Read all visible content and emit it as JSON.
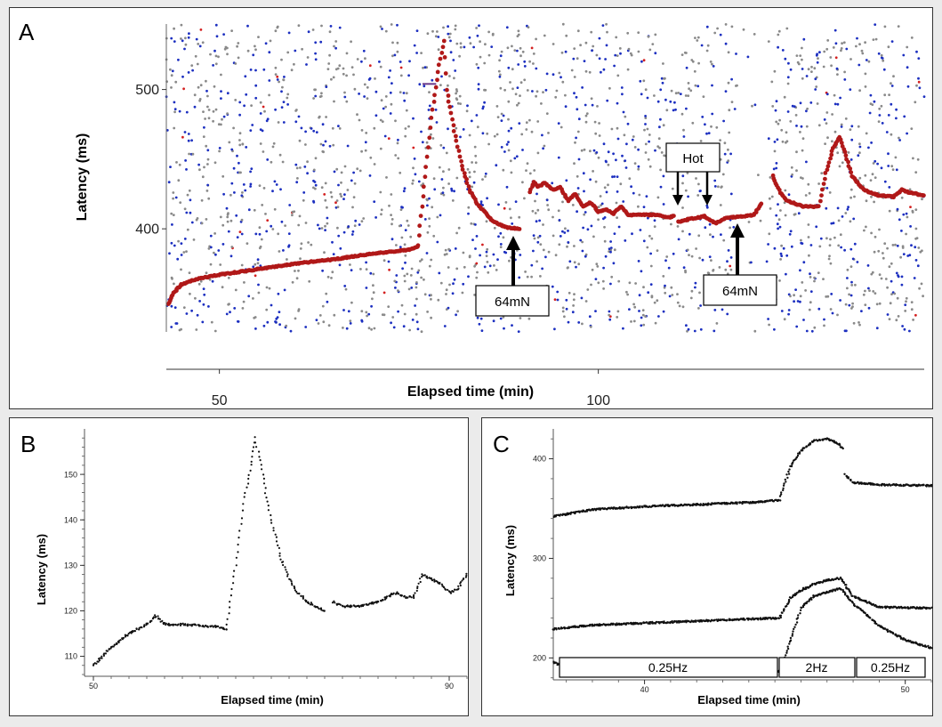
{
  "chart_data": [
    {
      "panel_letter": "A",
      "type": "scatter",
      "xlabel": "Elapsed time (min)",
      "ylabel": "Latency (ms)",
      "xticks": [
        50,
        100
      ],
      "yticks": [
        400,
        500
      ],
      "xlim": [
        43,
        143
      ],
      "ylim": [
        326,
        547
      ],
      "colors": {
        "trace": "#b01818",
        "blue": "#1c2fc0",
        "grey": "#8a8a8a",
        "red": "#d42020"
      },
      "series": [
        {
          "segments": [
            [
              [
                43.2,
                346
              ],
              [
                44,
                354
              ],
              [
                45,
                360
              ],
              [
                47,
                364
              ],
              [
                50,
                367
              ],
              [
                55,
                371
              ],
              [
                60,
                375
              ],
              [
                65,
                378
              ],
              [
                70,
                382
              ],
              [
                75,
                385
              ],
              [
                76.2,
                387
              ]
            ],
            [
              [
                76.2,
                388
              ],
              [
                77,
                430
              ],
              [
                78,
                480
              ],
              [
                79,
                518
              ],
              [
                79.6,
                535
              ],
              [
                80,
                500
              ],
              [
                81,
                470
              ],
              [
                82,
                445
              ],
              [
                83,
                428
              ],
              [
                84,
                418
              ],
              [
                85,
                412
              ],
              [
                86,
                406
              ],
              [
                87,
                403
              ],
              [
                88,
                401
              ],
              [
                89.6,
                400
              ]
            ],
            [
              [
                91,
                426
              ],
              [
                91.5,
                434
              ],
              [
                92,
                430
              ],
              [
                93,
                433
              ],
              [
                94,
                428
              ],
              [
                95,
                430
              ],
              [
                96,
                420
              ],
              [
                97,
                425
              ],
              [
                98,
                416
              ],
              [
                99,
                419
              ],
              [
                100,
                412
              ],
              [
                101,
                414
              ],
              [
                102,
                411
              ],
              [
                103,
                416
              ],
              [
                104,
                410
              ],
              [
                105,
                410
              ],
              [
                107,
                410
              ],
              [
                108,
                410
              ],
              [
                109,
                408
              ],
              [
                110,
                409
              ]
            ],
            [
              [
                110.5,
                405
              ],
              [
                112,
                407
              ],
              [
                114,
                409
              ],
              [
                115.5,
                404
              ],
              [
                117,
                408
              ],
              [
                119,
                409
              ],
              [
                120.5,
                410
              ],
              [
                121.5,
                418
              ]
            ],
            [
              [
                123,
                438
              ],
              [
                124,
                426
              ],
              [
                125,
                420
              ],
              [
                126,
                418
              ],
              [
                127,
                416
              ],
              [
                128,
                416
              ],
              [
                129,
                416
              ]
            ],
            [
              [
                129.3,
                420
              ],
              [
                130,
                440
              ],
              [
                131,
                458
              ],
              [
                131.8,
                466
              ],
              [
                132.5,
                455
              ],
              [
                133.5,
                438
              ],
              [
                135,
                428
              ],
              [
                137,
                424
              ],
              [
                139,
                423
              ],
              [
                140,
                428
              ],
              [
                141,
                426
              ],
              [
                143,
                424
              ]
            ]
          ]
        }
      ],
      "annotations": [
        "64mN",
        "Hot",
        "64mN"
      ]
    },
    {
      "panel_letter": "B",
      "type": "scatter",
      "xlabel": "Elapsed time (min)",
      "ylabel": "Latency (ms)",
      "xticks": [
        50,
        90
      ],
      "yticks": [
        110,
        120,
        130,
        140,
        150
      ],
      "xlim": [
        50,
        92
      ],
      "ylim": [
        106,
        160
      ],
      "color": "#111111",
      "series": [
        {
          "segments": [
            [
              [
                50,
                108
              ],
              [
                52,
                112
              ],
              [
                54,
                115
              ],
              [
                56,
                117
              ],
              [
                57,
                119
              ],
              [
                58,
                117
              ],
              [
                60,
                117
              ],
              [
                64,
                116.5
              ],
              [
                65,
                116
              ]
            ],
            [
              [
                65,
                117
              ],
              [
                66,
                130
              ],
              [
                67,
                145
              ],
              [
                68,
                155
              ],
              [
                68.2,
                158
              ],
              [
                69,
                150
              ],
              [
                70,
                140
              ],
              [
                71,
                132
              ],
              [
                72,
                127
              ],
              [
                73,
                124
              ],
              [
                74,
                122
              ],
              [
                75,
                121
              ],
              [
                76,
                120
              ]
            ],
            [
              [
                77,
                122
              ],
              [
                78,
                121
              ],
              [
                80,
                121
              ],
              [
                82,
                122
              ],
              [
                84,
                124
              ],
              [
                85,
                123
              ],
              [
                86,
                123
              ],
              [
                87,
                128
              ],
              [
                88,
                127
              ],
              [
                89,
                126
              ],
              [
                90,
                124
              ],
              [
                91,
                125
              ],
              [
                92,
                128
              ]
            ]
          ]
        }
      ]
    },
    {
      "panel_letter": "C",
      "type": "scatter",
      "xlabel": "Elapsed time (min)",
      "ylabel": "Latency (ms)",
      "xticks": [
        40,
        50
      ],
      "yticks": [
        200,
        300,
        400
      ],
      "xlim": [
        36.5,
        51
      ],
      "ylim": [
        178,
        430
      ],
      "color": "#111111",
      "series": [
        {
          "segments": [
            [
              [
                36.5,
                342
              ],
              [
                38,
                349
              ],
              [
                40,
                352
              ],
              [
                42,
                354
              ],
              [
                44,
                356
              ],
              [
                45,
                358
              ],
              [
                45.2,
                358
              ]
            ],
            [
              [
                45.2,
                362
              ],
              [
                45.6,
                392
              ],
              [
                46,
                408
              ],
              [
                46.5,
                418
              ],
              [
                47,
                420
              ],
              [
                47.4,
                416
              ],
              [
                47.6,
                410
              ]
            ],
            [
              [
                47.7,
                384
              ],
              [
                48,
                376
              ],
              [
                49,
                374
              ],
              [
                51,
                373
              ]
            ]
          ]
        },
        {
          "segments": [
            [
              [
                36.5,
                229
              ],
              [
                38,
                233
              ],
              [
                40,
                235
              ],
              [
                42,
                237
              ],
              [
                44,
                239
              ],
              [
                45.2,
                240
              ]
            ],
            [
              [
                45.2,
                242
              ],
              [
                45.6,
                260
              ],
              [
                46,
                268
              ],
              [
                46.5,
                274
              ],
              [
                47,
                278
              ],
              [
                47.5,
                280
              ],
              [
                48,
                262
              ],
              [
                49,
                251
              ],
              [
                51,
                250
              ]
            ]
          ]
        },
        {
          "segments": [
            [
              [
                36.5,
                196
              ],
              [
                37,
                190
              ],
              [
                38,
                187
              ],
              [
                40,
                186
              ],
              [
                42,
                186
              ],
              [
                44,
                186
              ],
              [
                45.2,
                186
              ]
            ],
            [
              [
                45.2,
                188
              ],
              [
                45.6,
                218
              ],
              [
                46,
                250
              ],
              [
                46.5,
                262
              ],
              [
                47,
                266
              ],
              [
                47.5,
                270
              ],
              [
                48,
                255
              ],
              [
                49,
                232
              ],
              [
                50,
                218
              ],
              [
                51,
                210
              ]
            ]
          ]
        }
      ],
      "frequency_labels": [
        "0.25Hz",
        "2Hz",
        "0.25Hz"
      ]
    }
  ]
}
